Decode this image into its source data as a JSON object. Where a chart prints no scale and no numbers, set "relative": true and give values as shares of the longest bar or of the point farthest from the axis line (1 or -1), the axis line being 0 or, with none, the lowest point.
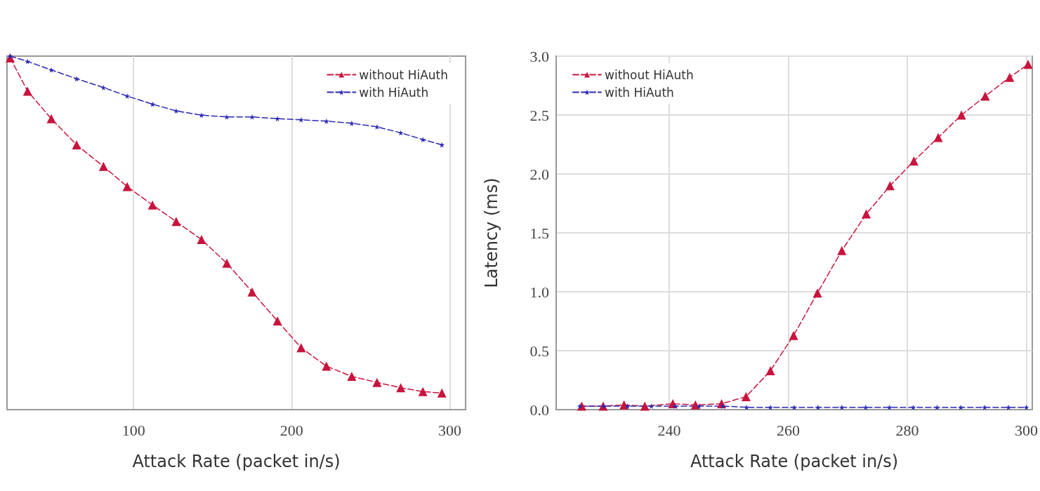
{
  "chart_data": [
    {
      "type": "line",
      "relative": true,
      "xlabel": "Attack Rate (packet in/s)",
      "xlim": [
        20,
        310
      ],
      "xticks": [
        100,
        200,
        300
      ],
      "tick_labels": "x",
      "grid": true,
      "legend": "top right",
      "x": [
        22,
        33,
        48,
        64,
        81,
        96,
        112,
        127,
        143,
        159,
        175,
        191,
        206,
        222,
        238,
        254,
        269,
        283,
        295
      ],
      "series": [
        {
          "name": "without HiAuth",
          "color": "#c8143c",
          "marker": "triangle",
          "line_style": "dashed",
          "values": [
            0.995,
            0.901,
            0.823,
            0.749,
            0.688,
            0.631,
            0.579,
            0.532,
            0.481,
            0.414,
            0.333,
            0.251,
            0.175,
            0.123,
            0.094,
            0.077,
            0.062,
            0.051,
            0.047
          ]
        },
        {
          "name": "with HiAuth",
          "color": "#2a2ab4",
          "marker": "star",
          "line_style": "dashed",
          "values": [
            1.0,
            0.985,
            0.961,
            0.936,
            0.911,
            0.887,
            0.864,
            0.845,
            0.833,
            0.828,
            0.828,
            0.823,
            0.82,
            0.816,
            0.81,
            0.8,
            0.783,
            0.764,
            0.749
          ]
        }
      ]
    },
    {
      "type": "line",
      "xlabel": "Attack Rate (packet in/s)",
      "ylabel": "Latency (ms)",
      "xlim": [
        221,
        301
      ],
      "xticks": [
        240,
        260,
        280,
        300
      ],
      "ylim": [
        0,
        3
      ],
      "yticks": [
        {
          "value": 0,
          "label": "0.0"
        },
        0.5,
        {
          "value": 1,
          "label": "1.0"
        },
        1.5,
        {
          "value": 2,
          "label": "2.0"
        },
        2.5,
        {
          "value": 3,
          "label": "3.0"
        }
      ],
      "grid": true,
      "legend": "top left",
      "series": [
        {
          "name": "without HiAuth",
          "color": "#c8143c",
          "marker": "triangle",
          "line_style": "dashed",
          "x": [
            225.3,
            228.9,
            232.4,
            235.9,
            240.6,
            244.4,
            248.8,
            252.9,
            257.0,
            260.9,
            264.9,
            269.0,
            273.1,
            277.1,
            281.1,
            285.2,
            289.1,
            293.1,
            297.2,
            300.3
          ],
          "values": [
            0.03,
            0.03,
            0.04,
            0.03,
            0.05,
            0.04,
            0.05,
            0.11,
            0.33,
            0.63,
            0.99,
            1.35,
            1.66,
            1.9,
            2.11,
            2.31,
            2.5,
            2.66,
            2.82,
            2.93
          ]
        },
        {
          "name": "with HiAuth",
          "color": "#2a2ab4",
          "marker": "star",
          "line_style": "dashed",
          "x": [
            225,
            229,
            233,
            237,
            241,
            245,
            249,
            253,
            257,
            261,
            265,
            269,
            273,
            277,
            281,
            285,
            289,
            293,
            297,
            300
          ],
          "values": [
            0.03,
            0.03,
            0.03,
            0.03,
            0.03,
            0.03,
            0.03,
            0.02,
            0.02,
            0.02,
            0.02,
            0.02,
            0.02,
            0.02,
            0.02,
            0.02,
            0.02,
            0.02,
            0.02,
            0.02
          ]
        }
      ]
    }
  ]
}
